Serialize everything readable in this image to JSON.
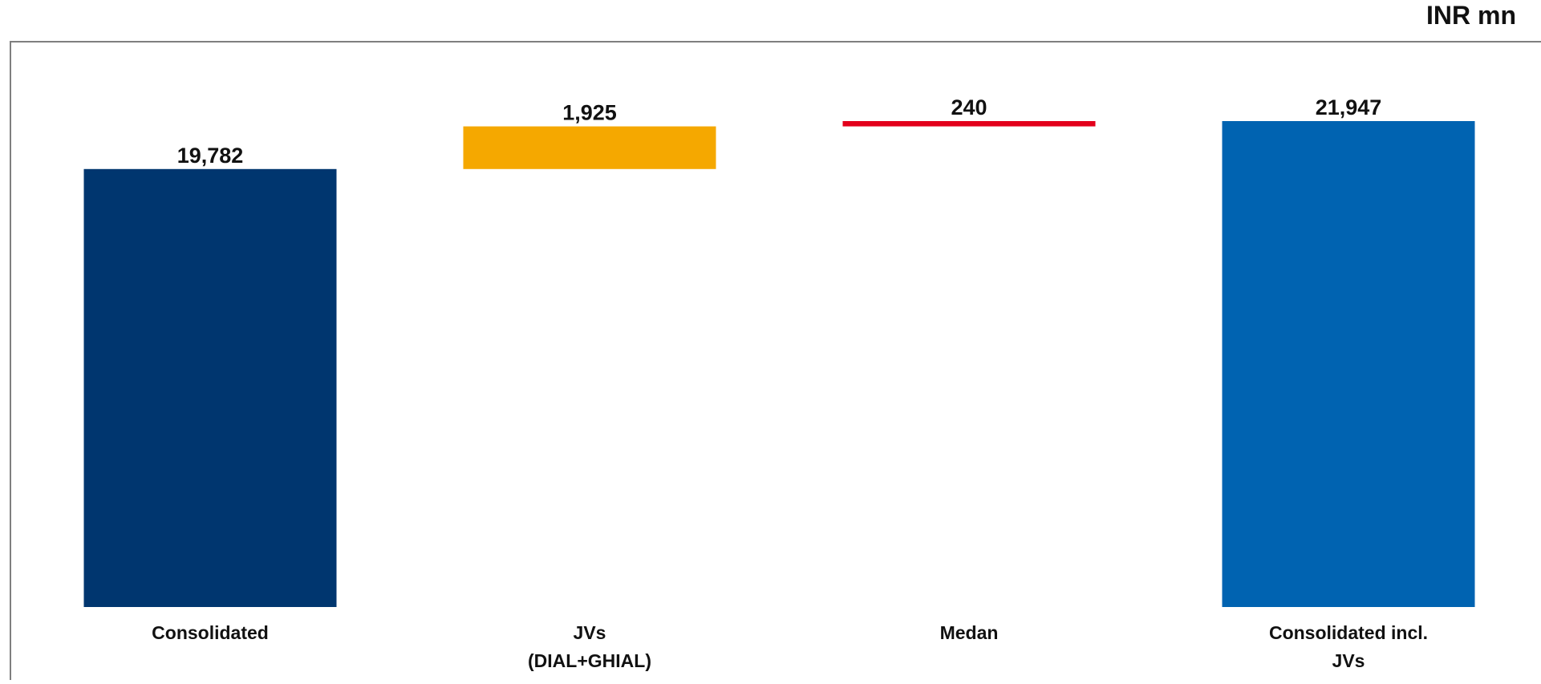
{
  "unit_label": "INR mn",
  "colors": {
    "consolidated": "#00366F",
    "jvs": "#F5A800",
    "medan": "#E3001B",
    "consolidated_incl_jvs": "#0063B1",
    "frame": "#7F7F7F"
  },
  "chart_data": {
    "type": "bar",
    "subtype": "waterfall",
    "title": "",
    "xlabel": "",
    "ylabel": "",
    "ylim": [
      0,
      22000
    ],
    "grid": false,
    "legend": "none",
    "unit": "INR mn",
    "categories": [
      [
        "Consolidated"
      ],
      [
        "JVs",
        "(DIAL+GHIAL)"
      ],
      [
        "Medan"
      ],
      [
        "Consolidated incl.",
        "JVs"
      ]
    ],
    "bars": [
      {
        "kind": "total",
        "value": 19782,
        "label": "19,782",
        "color_key": "consolidated"
      },
      {
        "kind": "increment",
        "value": 1925,
        "label": "1,925",
        "color_key": "jvs"
      },
      {
        "kind": "increment",
        "value": 240,
        "label": "240",
        "color_key": "medan"
      },
      {
        "kind": "total",
        "value": 21947,
        "label": "21,947",
        "color_key": "consolidated_incl_jvs"
      }
    ]
  }
}
